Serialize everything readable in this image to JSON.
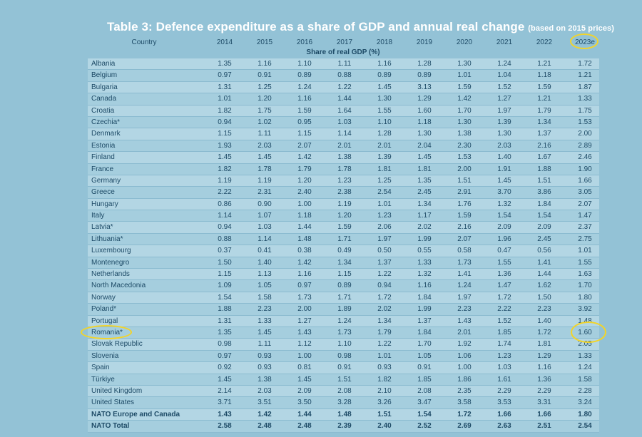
{
  "title": "Table 3: Defence expenditure as a share of GDP and annual real change",
  "title_suffix": "(based on 2015 prices)",
  "header": {
    "country": "Country",
    "years": [
      "2014",
      "2015",
      "2016",
      "2017",
      "2018",
      "2019",
      "2020",
      "2021",
      "2022",
      "2023e"
    ]
  },
  "subheader": "Share of real GDP (%)",
  "rows": [
    {
      "country": "Albania",
      "values": [
        "1.35",
        "1.16",
        "1.10",
        "1.11",
        "1.16",
        "1.28",
        "1.30",
        "1.24",
        "1.21",
        "1.72"
      ]
    },
    {
      "country": "Belgium",
      "values": [
        "0.97",
        "0.91",
        "0.89",
        "0.88",
        "0.89",
        "0.89",
        "1.01",
        "1.04",
        "1.18",
        "1.21"
      ]
    },
    {
      "country": "Bulgaria",
      "values": [
        "1.31",
        "1.25",
        "1.24",
        "1.22",
        "1.45",
        "3.13",
        "1.59",
        "1.52",
        "1.59",
        "1.87"
      ]
    },
    {
      "country": "Canada",
      "values": [
        "1.01",
        "1.20",
        "1.16",
        "1.44",
        "1.30",
        "1.29",
        "1.42",
        "1.27",
        "1.21",
        "1.33"
      ]
    },
    {
      "country": "Croatia",
      "values": [
        "1.82",
        "1.75",
        "1.59",
        "1.64",
        "1.55",
        "1.60",
        "1.70",
        "1.97",
        "1.79",
        "1.75"
      ]
    },
    {
      "country": "Czechia*",
      "values": [
        "0.94",
        "1.02",
        "0.95",
        "1.03",
        "1.10",
        "1.18",
        "1.30",
        "1.39",
        "1.34",
        "1.53"
      ]
    },
    {
      "country": "Denmark",
      "values": [
        "1.15",
        "1.11",
        "1.15",
        "1.14",
        "1.28",
        "1.30",
        "1.38",
        "1.30",
        "1.37",
        "2.00"
      ]
    },
    {
      "country": "Estonia",
      "values": [
        "1.93",
        "2.03",
        "2.07",
        "2.01",
        "2.01",
        "2.04",
        "2.30",
        "2.03",
        "2.16",
        "2.89"
      ]
    },
    {
      "country": "Finland",
      "values": [
        "1.45",
        "1.45",
        "1.42",
        "1.38",
        "1.39",
        "1.45",
        "1.53",
        "1.40",
        "1.67",
        "2.46"
      ]
    },
    {
      "country": "France",
      "values": [
        "1.82",
        "1.78",
        "1.79",
        "1.78",
        "1.81",
        "1.81",
        "2.00",
        "1.91",
        "1.88",
        "1.90"
      ]
    },
    {
      "country": "Germany",
      "values": [
        "1.19",
        "1.19",
        "1.20",
        "1.23",
        "1.25",
        "1.35",
        "1.51",
        "1.45",
        "1.51",
        "1.66"
      ]
    },
    {
      "country": "Greece",
      "values": [
        "2.22",
        "2.31",
        "2.40",
        "2.38",
        "2.54",
        "2.45",
        "2.91",
        "3.70",
        "3.86",
        "3.05"
      ]
    },
    {
      "country": "Hungary",
      "values": [
        "0.86",
        "0.90",
        "1.00",
        "1.19",
        "1.01",
        "1.34",
        "1.76",
        "1.32",
        "1.84",
        "2.07"
      ]
    },
    {
      "country": "Italy",
      "values": [
        "1.14",
        "1.07",
        "1.18",
        "1.20",
        "1.23",
        "1.17",
        "1.59",
        "1.54",
        "1.54",
        "1.47"
      ]
    },
    {
      "country": "Latvia*",
      "values": [
        "0.94",
        "1.03",
        "1.44",
        "1.59",
        "2.06",
        "2.02",
        "2.16",
        "2.09",
        "2.09",
        "2.37"
      ]
    },
    {
      "country": "Lithuania*",
      "values": [
        "0.88",
        "1.14",
        "1.48",
        "1.71",
        "1.97",
        "1.99",
        "2.07",
        "1.96",
        "2.45",
        "2.75"
      ]
    },
    {
      "country": "Luxembourg",
      "values": [
        "0.37",
        "0.41",
        "0.38",
        "0.49",
        "0.50",
        "0.55",
        "0.58",
        "0.47",
        "0.56",
        "1.01"
      ]
    },
    {
      "country": "Montenegro",
      "values": [
        "1.50",
        "1.40",
        "1.42",
        "1.34",
        "1.37",
        "1.33",
        "1.73",
        "1.55",
        "1.41",
        "1.55"
      ]
    },
    {
      "country": "Netherlands",
      "values": [
        "1.15",
        "1.13",
        "1.16",
        "1.15",
        "1.22",
        "1.32",
        "1.41",
        "1.36",
        "1.44",
        "1.63"
      ]
    },
    {
      "country": "North Macedonia",
      "values": [
        "1.09",
        "1.05",
        "0.97",
        "0.89",
        "0.94",
        "1.16",
        "1.24",
        "1.47",
        "1.62",
        "1.70"
      ]
    },
    {
      "country": "Norway",
      "values": [
        "1.54",
        "1.58",
        "1.73",
        "1.71",
        "1.72",
        "1.84",
        "1.97",
        "1.72",
        "1.50",
        "1.80"
      ]
    },
    {
      "country": "Poland*",
      "values": [
        "1.88",
        "2.23",
        "2.00",
        "1.89",
        "2.02",
        "1.99",
        "2.23",
        "2.22",
        "2.23",
        "3.92"
      ]
    },
    {
      "country": "Portugal",
      "values": [
        "1.31",
        "1.33",
        "1.27",
        "1.24",
        "1.34",
        "1.37",
        "1.43",
        "1.52",
        "1.40",
        "1.48"
      ]
    },
    {
      "country": "Romania*",
      "values": [
        "1.35",
        "1.45",
        "1.43",
        "1.73",
        "1.79",
        "1.84",
        "2.01",
        "1.85",
        "1.72",
        "1.60"
      ]
    },
    {
      "country": "Slovak Republic",
      "values": [
        "0.98",
        "1.11",
        "1.12",
        "1.10",
        "1.22",
        "1.70",
        "1.92",
        "1.74",
        "1.81",
        "2.05"
      ]
    },
    {
      "country": "Slovenia",
      "values": [
        "0.97",
        "0.93",
        "1.00",
        "0.98",
        "1.01",
        "1.05",
        "1.06",
        "1.23",
        "1.29",
        "1.33"
      ]
    },
    {
      "country": "Spain",
      "values": [
        "0.92",
        "0.93",
        "0.81",
        "0.91",
        "0.93",
        "0.91",
        "1.00",
        "1.03",
        "1.16",
        "1.24"
      ]
    },
    {
      "country": "Türkiye",
      "values": [
        "1.45",
        "1.38",
        "1.45",
        "1.51",
        "1.82",
        "1.85",
        "1.86",
        "1.61",
        "1.36",
        "1.58"
      ]
    },
    {
      "country": "United Kingdom",
      "values": [
        "2.14",
        "2.03",
        "2.09",
        "2.08",
        "2.10",
        "2.08",
        "2.35",
        "2.29",
        "2.29",
        "2.28"
      ]
    },
    {
      "country": "United States",
      "values": [
        "3.71",
        "3.51",
        "3.50",
        "3.28",
        "3.26",
        "3.47",
        "3.58",
        "3.53",
        "3.31",
        "3.24"
      ]
    },
    {
      "country": "NATO Europe and Canada",
      "values": [
        "1.43",
        "1.42",
        "1.44",
        "1.48",
        "1.51",
        "1.54",
        "1.72",
        "1.66",
        "1.66",
        "1.80"
      ],
      "bold": true
    },
    {
      "country": "NATO Total",
      "values": [
        "2.58",
        "2.48",
        "2.48",
        "2.39",
        "2.40",
        "2.52",
        "2.69",
        "2.63",
        "2.51",
        "2.54"
      ],
      "bold": true
    }
  ]
}
